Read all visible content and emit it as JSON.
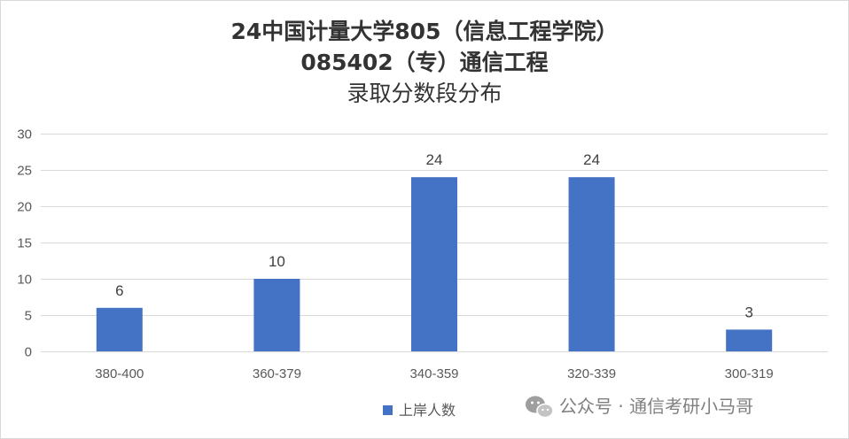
{
  "chart_data": {
    "type": "bar",
    "title_lines": [
      "24中国计量大学805（信息工程学院）",
      "085402（专）通信工程",
      "录取分数段分布"
    ],
    "categories": [
      "380-400",
      "360-379",
      "340-359",
      "320-339",
      "300-319"
    ],
    "series": [
      {
        "name": "上岸人数",
        "values": [
          6,
          10,
          24,
          24,
          3
        ],
        "color": "#4472C4"
      }
    ],
    "ylim": [
      0,
      30
    ],
    "yticks": [
      0,
      5,
      10,
      15,
      20,
      25,
      30
    ],
    "grid": true,
    "legend_position": "bottom",
    "xlabel": "",
    "ylabel": ""
  },
  "watermark": {
    "text": "公众号 · 通信考研小马哥",
    "icon": "wechat-icon"
  },
  "colors": {
    "gridline": "#D9D9D9",
    "border": "#D9D9D9"
  }
}
